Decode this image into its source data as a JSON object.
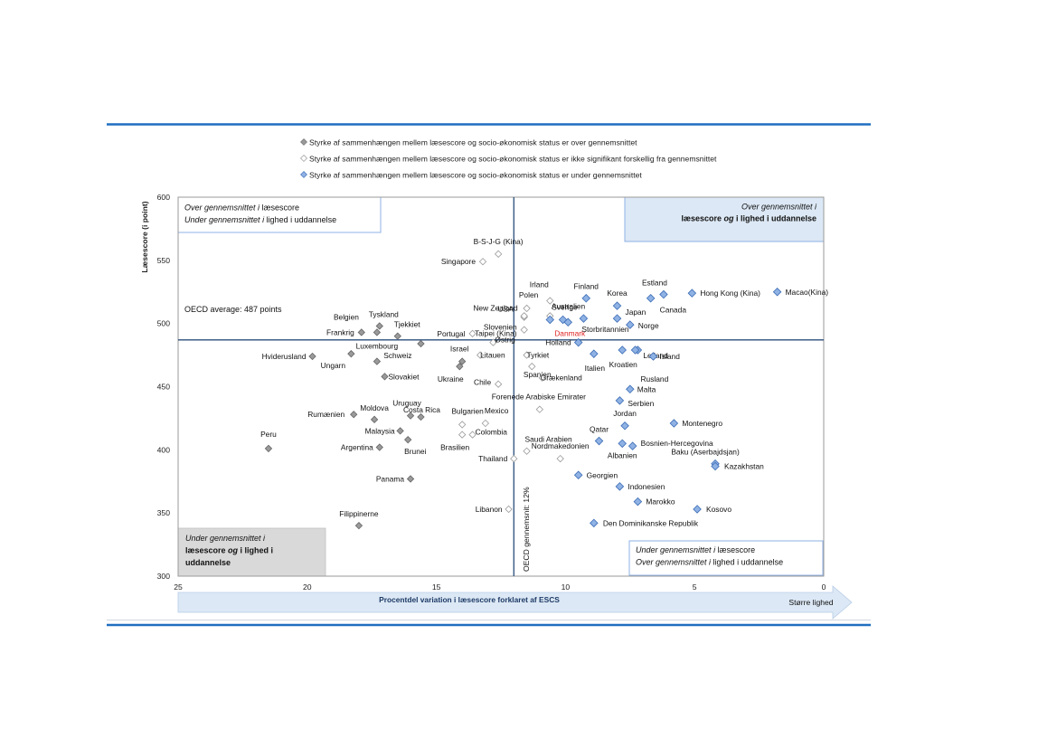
{
  "colors": {
    "frame_blue": "#1f6fc1",
    "axis_line": "#2c4f7c",
    "above_avg": "#9a9a9a",
    "not_sig": "#ffffff",
    "below_avg": "#8fb2e4",
    "below_avg_stroke": "#3a6bb5",
    "denmark_label": "#e02020",
    "box_fill_blue": "#dce8f5",
    "box_fill_grey": "#d9d9d9",
    "arrow_fill": "#dce8f5"
  },
  "legend": [
    {
      "key": "above",
      "label": "Styrke af sammenhængen mellem læsescore og socio-økonomisk status er over gennemsnittet"
    },
    {
      "key": "notsig",
      "label": "Styrke af sammenhængen mellem læsescore og socio-økonomisk status er ikke signifikant forskellig fra gennemsnittet"
    },
    {
      "key": "below",
      "label": "Styrke af sammenhængen mellem læsescore og socio-økonomisk status er under gennemsnittet"
    }
  ],
  "quadrants": {
    "top_left": {
      "line1_a": "Over gennemsnittet ",
      "line1_b": "i ",
      "line1_c": "læsescore",
      "line2_a": "Under gennemsnittet ",
      "line2_b": "i ",
      "line2_c": "lighed i uddannelse"
    },
    "top_right": {
      "line1": "Over gennemsnittet i",
      "line2_a": "læsescore ",
      "line2_b": "og ",
      "line2_c": "i lighed i uddannelse"
    },
    "bottom_left": {
      "line1": "Under gennemsnittet i",
      "line2_a": "læsescore ",
      "line2_b": "og ",
      "line2_c": "i lighed i",
      "line3": "uddannelse"
    },
    "bottom_right": {
      "line1_a": "Under gennemsnittet ",
      "line1_b": "i ",
      "line1_c": "læsescore",
      "line2_a": "Over gennemsnittet ",
      "line2_b": "i ",
      "line2_c": "lighed i uddannelse"
    }
  },
  "oecd_average_label": "OECD average: 487 points",
  "oecd_vertical_label": "OECD gennemsnit: 12%",
  "arrow_label": "Større lighed",
  "chart_data": {
    "type": "scatter",
    "xlabel": "Procentdel variation i læsescore forklaret af ESCS",
    "ylabel": "Læsescore  (i point)",
    "xlim": [
      25,
      0
    ],
    "ylim": [
      300,
      600
    ],
    "x_ticks": [
      "25",
      "20",
      "15",
      "10",
      "5",
      "0"
    ],
    "y_ticks": [
      "600",
      "550",
      "500",
      "450",
      "400",
      "350",
      "300"
    ],
    "reference_lines": {
      "oecd_mean_y": 487,
      "oecd_mean_x": 12
    },
    "series": [
      {
        "key": "above",
        "points": [
          {
            "name": "Hviderusland",
            "x": 19.8,
            "y": 474
          },
          {
            "name": "Ungarn",
            "x": 18.3,
            "y": 476
          },
          {
            "name": "Luxembourg",
            "x": 17.3,
            "y": 470
          },
          {
            "name": "Slovakiet",
            "x": 17.0,
            "y": 458
          },
          {
            "name": "Frankrig",
            "x": 17.9,
            "y": 493
          },
          {
            "name": "Belgien",
            "x": 17.3,
            "y": 493
          },
          {
            "name": "Tyskland",
            "x": 17.2,
            "y": 498
          },
          {
            "name": "Tjekkiet",
            "x": 16.5,
            "y": 490
          },
          {
            "name": "Schweiz",
            "x": 15.6,
            "y": 484
          },
          {
            "name": "Israel",
            "x": 14.0,
            "y": 470
          },
          {
            "name": "Ukraine",
            "x": 14.1,
            "y": 466
          },
          {
            "name": "Rumænien",
            "x": 18.2,
            "y": 428
          },
          {
            "name": "Moldova",
            "x": 17.4,
            "y": 424
          },
          {
            "name": "Uruguay",
            "x": 16.0,
            "y": 427
          },
          {
            "name": "Costa Rica",
            "x": 15.6,
            "y": 426
          },
          {
            "name": "Malaysia",
            "x": 16.4,
            "y": 415
          },
          {
            "name": "Argentina",
            "x": 17.2,
            "y": 402
          },
          {
            "name": "Brunei",
            "x": 16.1,
            "y": 408
          },
          {
            "name": "Peru",
            "x": 21.5,
            "y": 401
          },
          {
            "name": "Panama",
            "x": 16.0,
            "y": 377
          },
          {
            "name": "Filippinerne",
            "x": 18.0,
            "y": 340
          }
        ]
      },
      {
        "key": "notsig",
        "points": [
          {
            "name": "B-S-J-G (Kina)",
            "x": 12.6,
            "y": 555
          },
          {
            "name": "Singapore",
            "x": 13.2,
            "y": 549
          },
          {
            "name": "USA",
            "x": 11.6,
            "y": 505
          },
          {
            "name": "Irland",
            "x": 10.6,
            "y": 518
          },
          {
            "name": "Polen",
            "x": 11.5,
            "y": 512
          },
          {
            "name": "New Zealand",
            "x": 11.6,
            "y": 506
          },
          {
            "name": "Slovenien",
            "x": 11.6,
            "y": 495
          },
          {
            "name": "Portugal",
            "x": 13.6,
            "y": 492
          },
          {
            "name": "Sverige",
            "x": 10.6,
            "y": 506
          },
          {
            "name": "Østrig",
            "x": 12.8,
            "y": 485
          },
          {
            "name": "Litauen",
            "x": 13.3,
            "y": 475
          },
          {
            "name": "Tyrkiet",
            "x": 11.5,
            "y": 475
          },
          {
            "name": "Spanien",
            "x": 11.3,
            "y": 466
          },
          {
            "name": "Grækenland",
            "x": 10.9,
            "y": 457
          },
          {
            "name": "Chile",
            "x": 12.6,
            "y": 452
          },
          {
            "name": "Forenede Arabiske Emirater",
            "x": 11.0,
            "y": 432
          },
          {
            "name": "Bulgarien",
            "x": 14.0,
            "y": 420
          },
          {
            "name": "Mexico",
            "x": 13.1,
            "y": 421
          },
          {
            "name": "Colombia",
            "x": 13.6,
            "y": 412
          },
          {
            "name": "Brasilien",
            "x": 14.0,
            "y": 412
          },
          {
            "name": "Saudi Arabien",
            "x": 11.5,
            "y": 399
          },
          {
            "name": "Thailand",
            "x": 12.0,
            "y": 393
          },
          {
            "name": "Nordmakedonien",
            "x": 10.2,
            "y": 393
          },
          {
            "name": "Libanon",
            "x": 12.2,
            "y": 353
          }
        ]
      },
      {
        "key": "below",
        "points": [
          {
            "name": "Finland",
            "x": 9.2,
            "y": 520
          },
          {
            "name": "Korea",
            "x": 8.0,
            "y": 514
          },
          {
            "name": "Estland",
            "x": 6.2,
            "y": 523
          },
          {
            "name": "Canada",
            "x": 6.7,
            "y": 520
          },
          {
            "name": "Hong Kong (Kina)",
            "x": 5.1,
            "y": 524
          },
          {
            "name": "Macao(Kina)",
            "x": 1.8,
            "y": 525
          },
          {
            "name": "Australien",
            "x": 10.1,
            "y": 503
          },
          {
            "name": "Danmark",
            "x": 9.9,
            "y": 501
          },
          {
            "name": "Storbritannien",
            "x": 9.3,
            "y": 504
          },
          {
            "name": "Japan",
            "x": 8.0,
            "y": 504
          },
          {
            "name": "Norge",
            "x": 7.5,
            "y": 499
          },
          {
            "name": "Holland",
            "x": 9.5,
            "y": 485
          },
          {
            "name": "Taipei (Kina)",
            "x": 10.6,
            "y": 503
          },
          {
            "name": "Italien",
            "x": 8.9,
            "y": 476
          },
          {
            "name": "Letland",
            "x": 7.2,
            "y": 479
          },
          {
            "name": "Kroatien",
            "x": 7.8,
            "y": 479
          },
          {
            "name": "Island",
            "x": 6.6,
            "y": 474
          },
          {
            "name": "Rusland",
            "x": 7.3,
            "y": 479
          },
          {
            "name": "Malta",
            "x": 7.5,
            "y": 448
          },
          {
            "name": "Serbien",
            "x": 7.9,
            "y": 439
          },
          {
            "name": "Jordan",
            "x": 7.7,
            "y": 419
          },
          {
            "name": "Montenegro",
            "x": 5.8,
            "y": 421
          },
          {
            "name": "Qatar",
            "x": 8.7,
            "y": 407
          },
          {
            "name": "Albanien",
            "x": 7.8,
            "y": 405
          },
          {
            "name": "Bosnien-Hercegovina",
            "x": 7.4,
            "y": 403
          },
          {
            "name": "Baku (Aserbajdsjan)",
            "x": 4.2,
            "y": 389
          },
          {
            "name": "Kazakhstan",
            "x": 4.2,
            "y": 387
          },
          {
            "name": "Georgien",
            "x": 9.5,
            "y": 380
          },
          {
            "name": "Indonesien",
            "x": 7.9,
            "y": 371
          },
          {
            "name": "Marokko",
            "x": 7.2,
            "y": 359
          },
          {
            "name": "Kosovo",
            "x": 4.9,
            "y": 353
          },
          {
            "name": "Den Dominikanske Republik",
            "x": 8.9,
            "y": 342
          }
        ]
      }
    ]
  }
}
